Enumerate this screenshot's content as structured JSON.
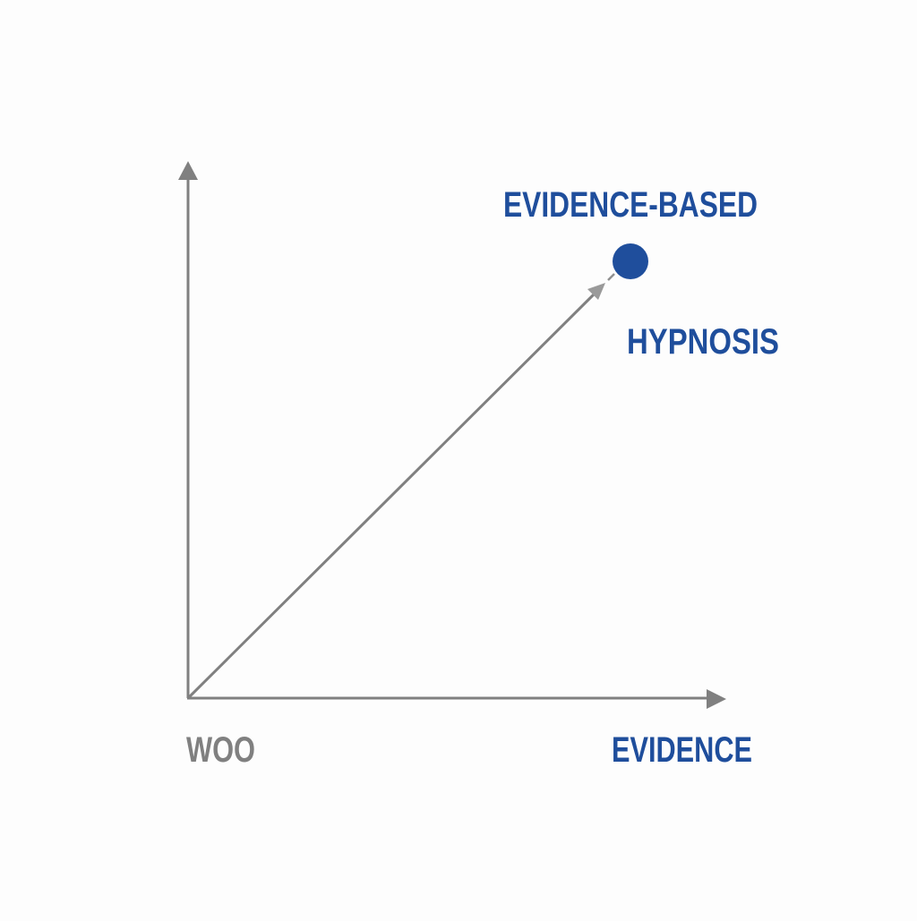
{
  "diagram": {
    "labels": {
      "top_point": "EVIDENCE-BASED",
      "point_name": "HYPNOSIS",
      "origin": "WOO",
      "x_axis_end": "EVIDENCE"
    },
    "colors": {
      "axis": "#808080",
      "accent": "#1f4e9c",
      "background": "#fdfdfd"
    }
  }
}
